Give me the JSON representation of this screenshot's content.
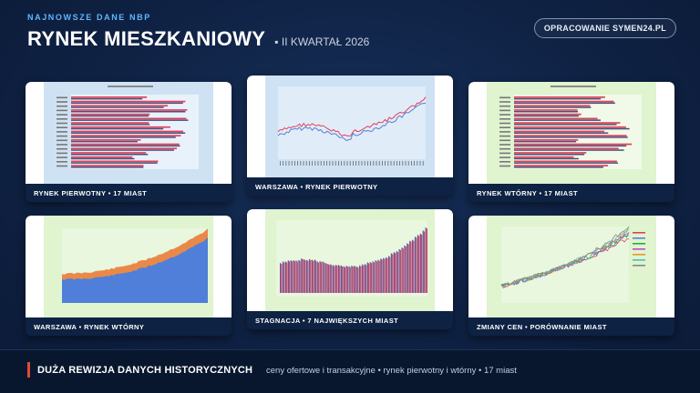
{
  "header": {
    "kicker": "NAJNOWSZE DANE NBP",
    "title": "RYNEK MIESZKANIOWY",
    "subtitle": "▪ II KWARTAŁ 2026",
    "credit": "OPRACOWANIE SYMEN24.PL"
  },
  "cards": [
    {
      "caption": "RYNEK PIERWOTNY • 17 MIAST"
    },
    {
      "caption": "WARSZAWA • RYNEK PIERWOTNY"
    },
    {
      "caption": "RYNEK WTÓRNY • 17 MIAST"
    },
    {
      "caption": "WARSZAWA • RYNEK WTÓRNY"
    },
    {
      "caption": "STAGNACJA • 7 NAJWIĘKSZYCH MIAST"
    },
    {
      "caption": "ZMIANY CEN • PORÓWNANIE MIAST"
    }
  ],
  "footer": {
    "heading": "DUŻA REWIZJA DANYCH HISTORYCZNYCH",
    "note": "ceny ofertowe i transakcyjne • rynek pierwotny i wtórny • 17 miast"
  },
  "colors": {
    "accent_blue": "#5fb7ff",
    "accent_red": "#e04a3a",
    "series_red": "#e0425a",
    "series_blue": "#5b7fd6",
    "plot_blue_bg": "#cfe2f4",
    "plot_green_bg": "#dff4cf"
  }
}
